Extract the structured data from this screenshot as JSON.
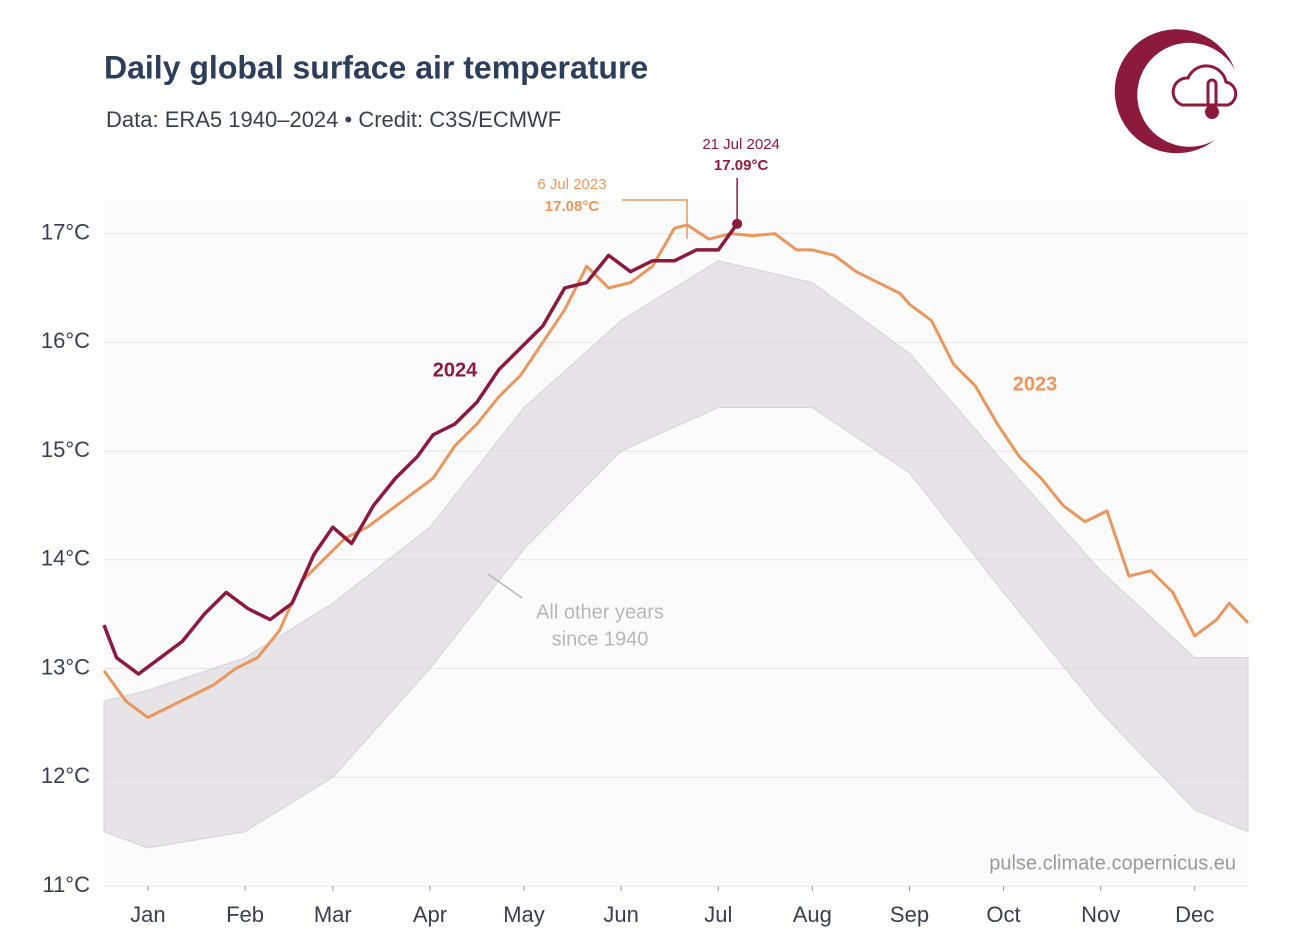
{
  "chart_data": {
    "type": "line",
    "title": "Daily global surface air temperature",
    "subtitle": "Data: ERA5 1940–2024 • Credit: C3S/ECMWF",
    "source": "pulse.climate.copernicus.eu",
    "xlim": [
      1,
      366
    ],
    "xticks": [
      {
        "value": 15,
        "label": "Jan"
      },
      {
        "value": 46,
        "label": "Feb"
      },
      {
        "value": 74,
        "label": "Mar"
      },
      {
        "value": 105,
        "label": "Apr"
      },
      {
        "value": 135,
        "label": "May"
      },
      {
        "value": 166,
        "label": "Jun"
      },
      {
        "value": 197,
        "label": "Jul"
      },
      {
        "value": 227,
        "label": "Aug"
      },
      {
        "value": 258,
        "label": "Sep"
      },
      {
        "value": 288,
        "label": "Oct"
      },
      {
        "value": 319,
        "label": "Nov"
      },
      {
        "value": 349,
        "label": "Dec"
      }
    ],
    "ylim": [
      11,
      17.3
    ],
    "yticks": [
      {
        "value": 11,
        "label": "11°C"
      },
      {
        "value": 12,
        "label": "12°C"
      },
      {
        "value": 13,
        "label": "13°C"
      },
      {
        "value": 14,
        "label": "14°C"
      },
      {
        "value": 15,
        "label": "15°C"
      },
      {
        "value": 16,
        "label": "16°C"
      },
      {
        "value": 17,
        "label": "17°C"
      }
    ],
    "grid": true,
    "band": {
      "label": [
        "All other years",
        "since 1940"
      ],
      "color": "#d4d2d6",
      "x": [
        1,
        15,
        46,
        74,
        105,
        135,
        166,
        197,
        227,
        258,
        288,
        319,
        349,
        366
      ],
      "low": [
        11.5,
        11.35,
        11.5,
        12.0,
        13.0,
        14.1,
        15.0,
        15.4,
        15.4,
        14.8,
        13.7,
        12.6,
        11.7,
        11.5
      ],
      "high": [
        12.7,
        12.8,
        13.1,
        13.6,
        14.3,
        15.4,
        16.2,
        16.75,
        16.55,
        15.9,
        14.9,
        13.9,
        13.1,
        13.1
      ]
    },
    "series": [
      {
        "name": "2023",
        "color": "#e8975e",
        "x": [
          1,
          8,
          15,
          22,
          29,
          36,
          43,
          50,
          57,
          64,
          71,
          78,
          85,
          92,
          99,
          106,
          113,
          120,
          127,
          134,
          141,
          148,
          155,
          162,
          169,
          176,
          183,
          187,
          194,
          201,
          208,
          215,
          222,
          227,
          234,
          241,
          248,
          255,
          258,
          265,
          272,
          279,
          286,
          293,
          300,
          307,
          314,
          321,
          328,
          335,
          342,
          349,
          356,
          360,
          366
        ],
        "values": [
          12.98,
          12.7,
          12.55,
          12.65,
          12.75,
          12.85,
          13.0,
          13.1,
          13.35,
          13.8,
          14.0,
          14.2,
          14.3,
          14.45,
          14.6,
          14.75,
          15.05,
          15.25,
          15.5,
          15.7,
          16.0,
          16.3,
          16.7,
          16.5,
          16.55,
          16.7,
          17.05,
          17.08,
          16.95,
          17.0,
          16.98,
          17.0,
          16.85,
          16.85,
          16.8,
          16.65,
          16.55,
          16.45,
          16.35,
          16.2,
          15.8,
          15.6,
          15.25,
          14.95,
          14.75,
          14.5,
          14.35,
          14.45,
          13.85,
          13.9,
          13.7,
          13.3,
          13.45,
          13.6,
          13.42
        ]
      },
      {
        "name": "2024",
        "color": "#8b1a3c",
        "x": [
          1,
          5,
          12,
          19,
          26,
          33,
          40,
          47,
          54,
          61,
          68,
          74,
          80,
          87,
          94,
          101,
          106,
          113,
          120,
          127,
          134,
          141,
          148,
          155,
          162,
          169,
          176,
          183,
          190,
          197,
          203
        ],
        "values": [
          13.4,
          13.1,
          12.95,
          13.1,
          13.25,
          13.5,
          13.7,
          13.55,
          13.45,
          13.6,
          14.05,
          14.3,
          14.15,
          14.5,
          14.75,
          14.95,
          15.15,
          15.25,
          15.45,
          15.75,
          15.95,
          16.15,
          16.5,
          16.55,
          16.8,
          16.65,
          16.75,
          16.75,
          16.85,
          16.85,
          17.09
        ]
      }
    ],
    "annotations": [
      {
        "series": 0,
        "index": 27,
        "date": "6 Jul 2023",
        "value_label": "17.08°C"
      },
      {
        "series": 1,
        "index": 30,
        "date": "21 Jul 2024",
        "value_label": "17.09°C"
      }
    ]
  }
}
